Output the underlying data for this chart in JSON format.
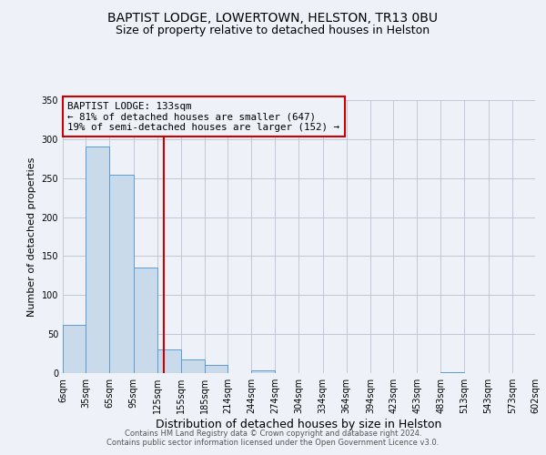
{
  "title": "BAPTIST LODGE, LOWERTOWN, HELSTON, TR13 0BU",
  "subtitle": "Size of property relative to detached houses in Helston",
  "xlabel": "Distribution of detached houses by size in Helston",
  "ylabel": "Number of detached properties",
  "bin_edges": [
    6,
    35,
    65,
    95,
    125,
    155,
    185,
    214,
    244,
    274,
    304,
    334,
    364,
    394,
    423,
    453,
    483,
    513,
    543,
    573,
    602
  ],
  "bin_labels": [
    "6sqm",
    "35sqm",
    "65sqm",
    "95sqm",
    "125sqm",
    "155sqm",
    "185sqm",
    "214sqm",
    "244sqm",
    "274sqm",
    "304sqm",
    "334sqm",
    "364sqm",
    "394sqm",
    "423sqm",
    "453sqm",
    "483sqm",
    "513sqm",
    "543sqm",
    "573sqm",
    "602sqm"
  ],
  "counts": [
    62,
    291,
    254,
    135,
    30,
    18,
    11,
    0,
    3,
    0,
    0,
    0,
    0,
    0,
    0,
    0,
    1,
    0,
    0,
    0
  ],
  "bar_color": "#c9daea",
  "bar_edge_color": "#5b9bd5",
  "grid_color": "#c0c8d8",
  "vline_x": 133,
  "vline_color": "#cc0000",
  "annotation_title": "BAPTIST LODGE: 133sqm",
  "annotation_line1": "← 81% of detached houses are smaller (647)",
  "annotation_line2": "19% of semi-detached houses are larger (152) →",
  "annotation_box_color": "#cc0000",
  "ylim": [
    0,
    350
  ],
  "yticks": [
    0,
    50,
    100,
    150,
    200,
    250,
    300,
    350
  ],
  "footnote1": "Contains HM Land Registry data © Crown copyright and database right 2024.",
  "footnote2": "Contains public sector information licensed under the Open Government Licence v3.0.",
  "bg_color": "#eef2f8",
  "title_fontsize": 10,
  "subtitle_fontsize": 9,
  "xlabel_fontsize": 9,
  "ylabel_fontsize": 8,
  "tick_fontsize": 7,
  "footnote_fontsize": 6
}
